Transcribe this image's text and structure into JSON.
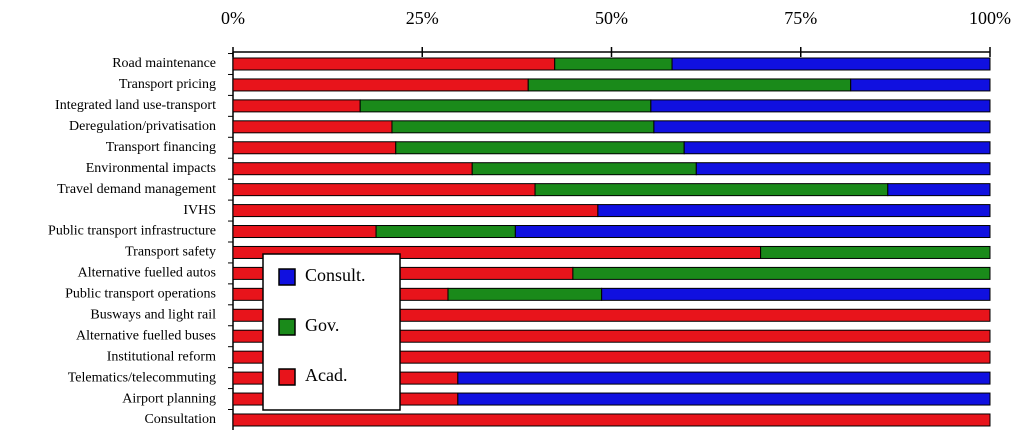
{
  "chart_data": {
    "type": "stacked-bar-horizontal",
    "categories": [
      "Road maintenance",
      "Transport pricing",
      "Integrated land use-transport",
      "Deregulation/privatisation",
      "Transport financing",
      "Environmental impacts",
      "Travel demand management",
      "IVHS",
      "Public transport infrastructure",
      "Transport safety",
      "Alternative fuelled autos",
      "Public transport operations",
      "Busways and light rail",
      "Alternative fuelled buses",
      "Institutional reform",
      "Telematics/telecommuting",
      "Airport planning",
      "Consultation"
    ],
    "series": [
      {
        "name": "Acad.",
        "color": "#e8141b",
        "values": [
          42.5,
          39,
          16.8,
          21,
          21.5,
          31.6,
          39.9,
          48.2,
          18.9,
          69.7,
          44.9,
          28.4,
          100,
          100,
          100,
          29.7,
          29.7,
          100
        ]
      },
      {
        "name": "Gov.",
        "color": "#1a8a1a",
        "values": [
          15.5,
          42.6,
          38.4,
          34.6,
          38.1,
          29.6,
          46.6,
          0,
          18.4,
          30.3,
          55.1,
          20.3,
          0,
          0,
          0,
          0,
          0,
          0
        ]
      },
      {
        "name": "Consult.",
        "color": "#1010e0",
        "values": [
          42,
          18.4,
          44.8,
          44.4,
          40.4,
          38.8,
          13.5,
          51.8,
          62.7,
          0,
          0,
          51.3,
          0,
          0,
          0,
          70.3,
          70.3,
          0
        ]
      }
    ],
    "xlim": [
      0,
      100
    ],
    "xticks": [
      {
        "value": 0,
        "label": "0%"
      },
      {
        "value": 25,
        "label": "25%"
      },
      {
        "value": 50,
        "label": "50%"
      },
      {
        "value": 75,
        "label": "75%"
      },
      {
        "value": 100,
        "label": "100%"
      }
    ]
  }
}
